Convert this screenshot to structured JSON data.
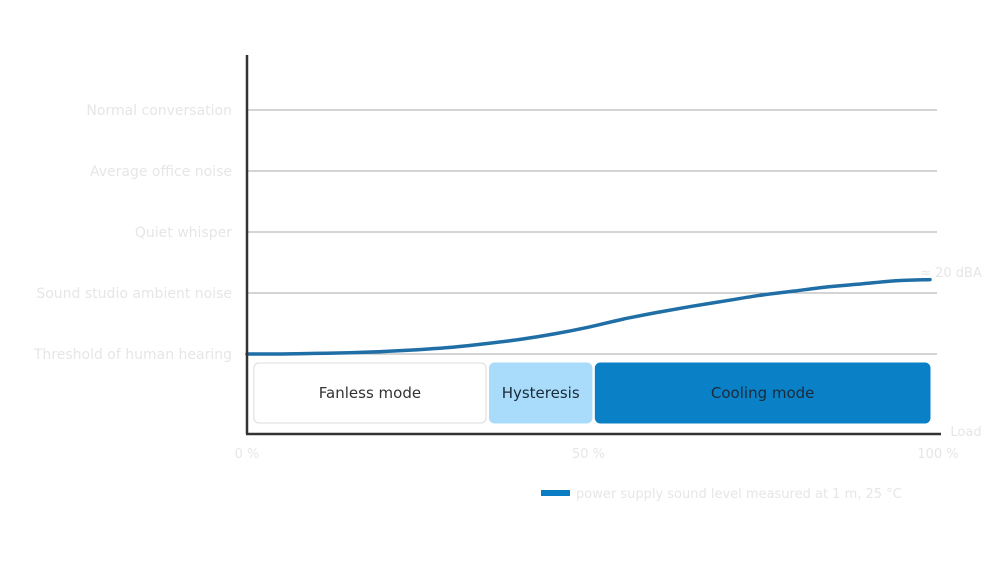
{
  "chart_data": {
    "type": "line",
    "y_categories": [
      "Threshold of human hearing",
      "Sound studio ambient noise",
      "Quiet whisper",
      "Average office noise",
      "Normal conversation"
    ],
    "x_ticks": [
      "0 %",
      "50 %",
      "100 %"
    ],
    "xlabel": "Load",
    "xlim": [
      0,
      100
    ],
    "series": [
      {
        "name": "power supply sound level measured at 1 m, 25 °C",
        "color": "#1f6fa6",
        "x": [
          0,
          5,
          10,
          15,
          20,
          25,
          30,
          35,
          40,
          45,
          50,
          55,
          60,
          65,
          70,
          75,
          80,
          85,
          90,
          95,
          100
        ],
        "y": [
          0.0,
          0.0,
          0.01,
          0.02,
          0.04,
          0.07,
          0.11,
          0.17,
          0.24,
          0.33,
          0.44,
          0.57,
          0.68,
          0.78,
          0.87,
          0.96,
          1.03,
          1.1,
          1.15,
          1.2,
          1.22
        ]
      }
    ],
    "annotation": "≈ 20 dBA",
    "modes": [
      {
        "label": "Fanless mode",
        "x_start": 1,
        "x_end": 35,
        "fill": "#ffffff",
        "border": "#dcdcdc",
        "text_color": "#333333"
      },
      {
        "label": "Hysteresis",
        "x_start": 35.5,
        "x_end": 50.5,
        "fill": "#a9dcfa",
        "border": "#a9dcfa",
        "text_color": "#1a2a3a"
      },
      {
        "label": "Cooling mode",
        "x_start": 51,
        "x_end": 100,
        "fill": "#0a80c6",
        "border": "#0a80c6",
        "text_color": "#1a2a3a"
      }
    ],
    "grid": true,
    "legend_position": "bottom-right"
  }
}
